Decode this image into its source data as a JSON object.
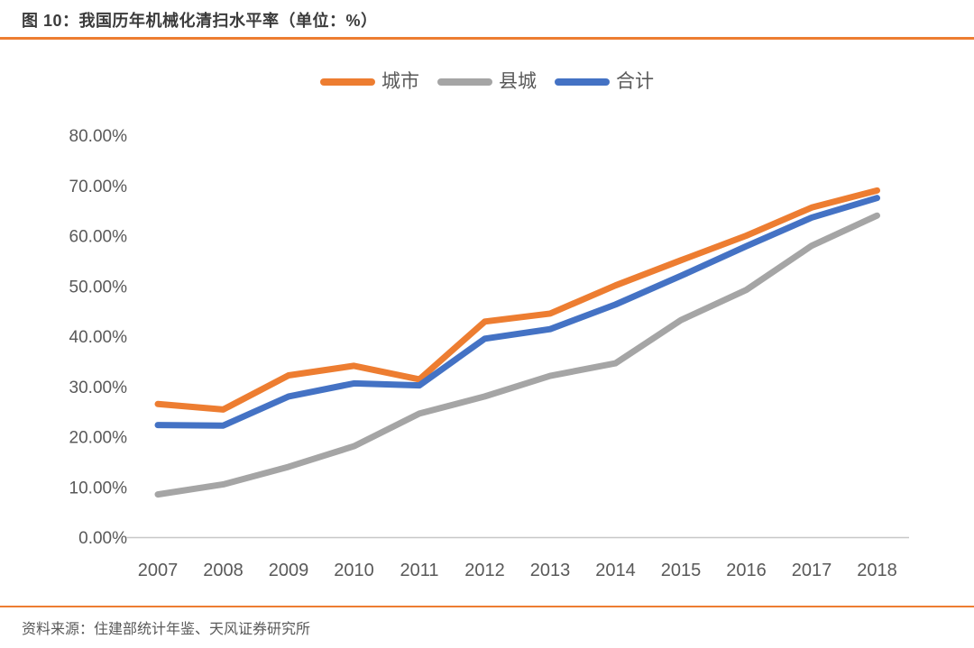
{
  "page": {
    "title": "图 10：我国历年机械化清扫水平率（单位：%）",
    "source": "资料来源：住建部统计年鉴、天风证券研究所"
  },
  "colors": {
    "accent_divider": "#ed7d31",
    "title_text": "#3b3b3b",
    "axis_text": "#595959",
    "axis_line": "#c8c8c8"
  },
  "chart_data": {
    "type": "line",
    "title": "图 10：我国历年机械化清扫水平率（单位：%）",
    "unit": "%",
    "categories": [
      "2007",
      "2008",
      "2009",
      "2010",
      "2011",
      "2012",
      "2013",
      "2014",
      "2015",
      "2016",
      "2017",
      "2018"
    ],
    "series": [
      {
        "name": "城市",
        "color": "#ed7d31",
        "values": [
          26.5,
          25.4,
          32.2,
          34.1,
          31.4,
          42.9,
          44.5,
          50.1,
          55.1,
          60.0,
          65.6,
          69.0
        ]
      },
      {
        "name": "县城",
        "color": "#a5a5a5",
        "values": [
          8.5,
          10.5,
          14.0,
          18.1,
          24.6,
          28.0,
          32.1,
          34.6,
          43.2,
          49.2,
          58.0,
          64.0
        ]
      },
      {
        "name": "合计",
        "color": "#4472c4",
        "values": [
          22.3,
          22.2,
          28.0,
          30.6,
          30.2,
          39.5,
          41.4,
          46.3,
          52.0,
          57.9,
          63.6,
          67.5
        ]
      }
    ],
    "ylim": [
      0,
      80
    ],
    "y_tick_step": 10,
    "y_tick_labels": [
      "0.00%",
      "10.00%",
      "20.00%",
      "30.00%",
      "40.00%",
      "50.00%",
      "60.00%",
      "70.00%",
      "80.00%"
    ],
    "grid": false,
    "legend_position": "top-center",
    "source": "资料来源：住建部统计年鉴、天风证券研究所"
  }
}
